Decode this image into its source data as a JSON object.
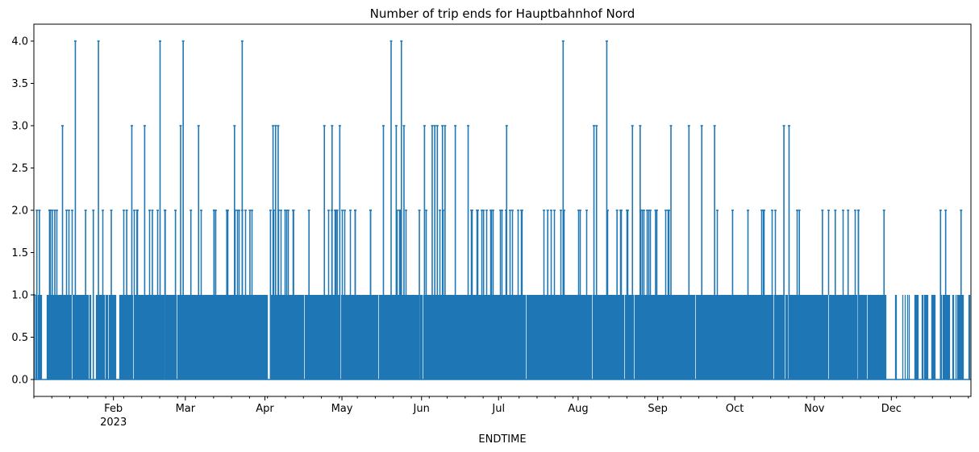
{
  "chart_data": {
    "type": "line",
    "title": "Number of trip ends for Hauptbahnhof Nord",
    "xlabel": "ENDTIME",
    "ylabel": "",
    "xlim": [
      "2023-01-01",
      "2023-12-31"
    ],
    "ylim": [
      -0.2,
      4.2
    ],
    "grid": false,
    "legend": "none",
    "series_color": "#1f77b4",
    "y_ticks": [
      0.0,
      0.5,
      1.0,
      1.5,
      2.0,
      2.5,
      3.0,
      3.5,
      4.0
    ],
    "y_tick_labels": [
      "0.0",
      "0.5",
      "1.0",
      "1.5",
      "2.0",
      "2.5",
      "3.0",
      "3.5",
      "4.0"
    ],
    "x_major_ticks": [
      {
        "date": "2023-02-01",
        "label": "Feb",
        "sublabel": "2023"
      },
      {
        "date": "2023-03-01",
        "label": "Mar",
        "sublabel": ""
      },
      {
        "date": "2023-04-01",
        "label": "Apr",
        "sublabel": ""
      },
      {
        "date": "2023-05-01",
        "label": "May",
        "sublabel": ""
      },
      {
        "date": "2023-06-01",
        "label": "Jun",
        "sublabel": ""
      },
      {
        "date": "2023-07-01",
        "label": "Jul",
        "sublabel": ""
      },
      {
        "date": "2023-08-01",
        "label": "Aug",
        "sublabel": ""
      },
      {
        "date": "2023-09-01",
        "label": "Sep",
        "sublabel": ""
      },
      {
        "date": "2023-10-01",
        "label": "Oct",
        "sublabel": ""
      },
      {
        "date": "2023-11-01",
        "label": "Nov",
        "sublabel": ""
      },
      {
        "date": "2023-12-01",
        "label": "Dec",
        "sublabel": ""
      }
    ],
    "series": [
      {
        "name": "",
        "points": [
          {
            "x": "2023-01-01",
            "y": 1
          },
          {
            "x": "2023-01-02",
            "y": 2
          },
          {
            "x": "2023-01-03",
            "y": 2
          },
          {
            "x": "2023-01-07",
            "y": 2
          },
          {
            "x": "2023-01-08",
            "y": 2
          },
          {
            "x": "2023-01-09",
            "y": 2
          },
          {
            "x": "2023-01-12",
            "y": 3
          },
          {
            "x": "2023-01-17",
            "y": 4
          },
          {
            "x": "2023-01-21",
            "y": 2
          },
          {
            "x": "2023-01-24",
            "y": 2
          },
          {
            "x": "2023-01-26",
            "y": 4
          },
          {
            "x": "2023-01-31",
            "y": 2
          },
          {
            "x": "2023-02-06",
            "y": 2
          },
          {
            "x": "2023-02-08",
            "y": 3
          },
          {
            "x": "2023-02-10",
            "y": 2
          },
          {
            "x": "2023-02-13",
            "y": 3
          },
          {
            "x": "2023-02-16",
            "y": 2
          },
          {
            "x": "2023-02-19",
            "y": 4
          },
          {
            "x": "2023-02-21",
            "y": 2
          },
          {
            "x": "2023-02-25",
            "y": 2
          },
          {
            "x": "2023-02-27",
            "y": 3
          },
          {
            "x": "2023-02-28",
            "y": 4
          },
          {
            "x": "2023-03-03",
            "y": 2
          },
          {
            "x": "2023-03-06",
            "y": 3
          },
          {
            "x": "2023-03-12",
            "y": 2
          },
          {
            "x": "2023-03-17",
            "y": 2
          },
          {
            "x": "2023-03-20",
            "y": 3
          },
          {
            "x": "2023-03-23",
            "y": 4
          },
          {
            "x": "2023-03-26",
            "y": 2
          },
          {
            "x": "2023-04-03",
            "y": 2
          },
          {
            "x": "2023-04-04",
            "y": 3
          },
          {
            "x": "2023-04-05",
            "y": 3
          },
          {
            "x": "2023-04-06",
            "y": 3
          },
          {
            "x": "2023-04-12",
            "y": 2
          },
          {
            "x": "2023-04-18",
            "y": 2
          },
          {
            "x": "2023-04-24",
            "y": 3
          },
          {
            "x": "2023-04-27",
            "y": 3
          },
          {
            "x": "2023-04-29",
            "y": 2
          },
          {
            "x": "2023-04-30",
            "y": 3
          },
          {
            "x": "2023-05-06",
            "y": 2
          },
          {
            "x": "2023-05-12",
            "y": 2
          },
          {
            "x": "2023-05-17",
            "y": 3
          },
          {
            "x": "2023-05-20",
            "y": 4
          },
          {
            "x": "2023-05-22",
            "y": 3
          },
          {
            "x": "2023-05-24",
            "y": 4
          },
          {
            "x": "2023-05-25",
            "y": 3
          },
          {
            "x": "2023-05-31",
            "y": 2
          },
          {
            "x": "2023-06-02",
            "y": 3
          },
          {
            "x": "2023-06-05",
            "y": 3
          },
          {
            "x": "2023-06-06",
            "y": 3
          },
          {
            "x": "2023-06-07",
            "y": 3
          },
          {
            "x": "2023-06-09",
            "y": 3
          },
          {
            "x": "2023-06-10",
            "y": 3
          },
          {
            "x": "2023-06-14",
            "y": 3
          },
          {
            "x": "2023-06-19",
            "y": 3
          },
          {
            "x": "2023-06-25",
            "y": 2
          },
          {
            "x": "2023-07-04",
            "y": 3
          },
          {
            "x": "2023-07-10",
            "y": 2
          },
          {
            "x": "2023-07-20",
            "y": 2
          },
          {
            "x": "2023-07-26",
            "y": 4
          },
          {
            "x": "2023-08-07",
            "y": 3
          },
          {
            "x": "2023-08-08",
            "y": 3
          },
          {
            "x": "2023-08-12",
            "y": 4
          },
          {
            "x": "2023-08-16",
            "y": 2
          },
          {
            "x": "2023-08-22",
            "y": 3
          },
          {
            "x": "2023-08-25",
            "y": 3
          },
          {
            "x": "2023-08-31",
            "y": 2
          },
          {
            "x": "2023-09-06",
            "y": 3
          },
          {
            "x": "2023-09-13",
            "y": 3
          },
          {
            "x": "2023-09-18",
            "y": 3
          },
          {
            "x": "2023-09-23",
            "y": 3
          },
          {
            "x": "2023-09-30",
            "y": 2
          },
          {
            "x": "2023-10-06",
            "y": 2
          },
          {
            "x": "2023-10-12",
            "y": 2
          },
          {
            "x": "2023-10-20",
            "y": 3
          },
          {
            "x": "2023-10-22",
            "y": 3
          },
          {
            "x": "2023-10-26",
            "y": 2
          },
          {
            "x": "2023-11-04",
            "y": 2
          },
          {
            "x": "2023-11-09",
            "y": 2
          },
          {
            "x": "2023-11-14",
            "y": 2
          },
          {
            "x": "2023-11-18",
            "y": 2
          },
          {
            "x": "2023-11-28",
            "y": 2
          },
          {
            "x": "2023-12-20",
            "y": 2
          },
          {
            "x": "2023-12-22",
            "y": 2
          },
          {
            "x": "2023-12-28",
            "y": 2
          }
        ]
      }
    ]
  }
}
